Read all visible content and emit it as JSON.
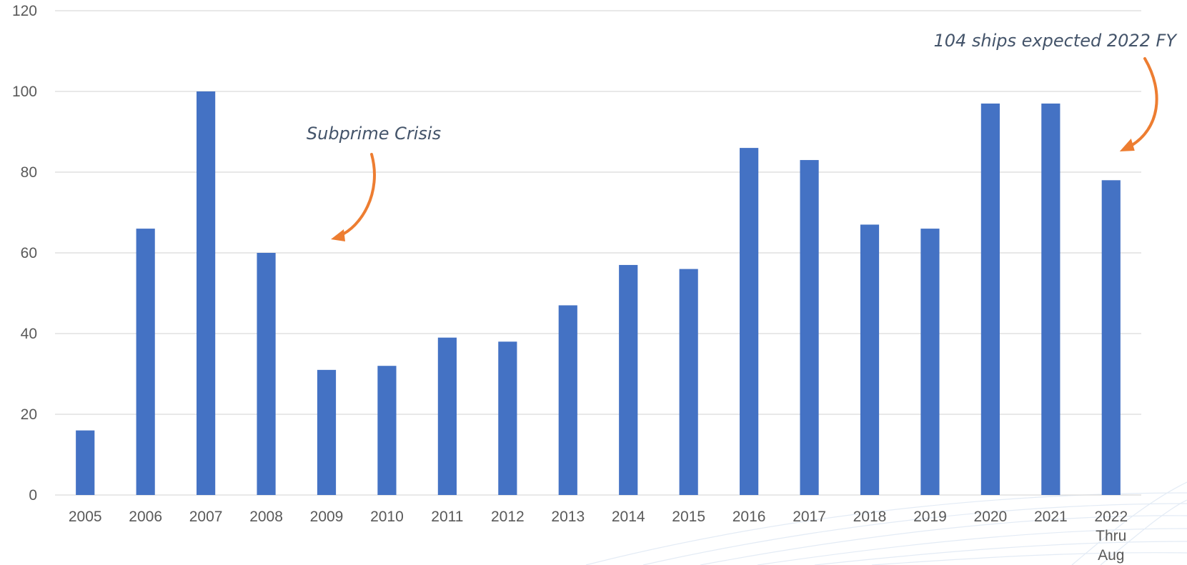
{
  "chart_data": {
    "type": "bar",
    "categories": [
      "2005",
      "2006",
      "2007",
      "2008",
      "2009",
      "2010",
      "2011",
      "2012",
      "2013",
      "2014",
      "2015",
      "2016",
      "2017",
      "2018",
      "2019",
      "2020",
      "2021",
      "2022 Thru Aug"
    ],
    "category_lines": [
      [
        "2005"
      ],
      [
        "2006"
      ],
      [
        "2007"
      ],
      [
        "2008"
      ],
      [
        "2009"
      ],
      [
        "2010"
      ],
      [
        "2011"
      ],
      [
        "2012"
      ],
      [
        "2013"
      ],
      [
        "2014"
      ],
      [
        "2015"
      ],
      [
        "2016"
      ],
      [
        "2017"
      ],
      [
        "2018"
      ],
      [
        "2019"
      ],
      [
        "2020"
      ],
      [
        "2021"
      ],
      [
        "2022",
        "Thru",
        "Aug"
      ]
    ],
    "values": [
      16,
      66,
      100,
      60,
      31,
      32,
      39,
      38,
      47,
      57,
      56,
      86,
      83,
      67,
      66,
      97,
      97,
      78
    ],
    "title": "",
    "xlabel": "",
    "ylabel": "",
    "ylim": [
      0,
      120
    ],
    "yticks": [
      0,
      20,
      40,
      60,
      80,
      100,
      120
    ],
    "grid": true,
    "legend": "none",
    "bar_color": "#4472c4",
    "arrow_color": "#ed7d31",
    "annotations": [
      {
        "text": "Subprime Crisis",
        "points_to": "2009"
      },
      {
        "text": "104 ships expected 2022 FY",
        "points_to": "2022 Thru Aug"
      }
    ]
  }
}
